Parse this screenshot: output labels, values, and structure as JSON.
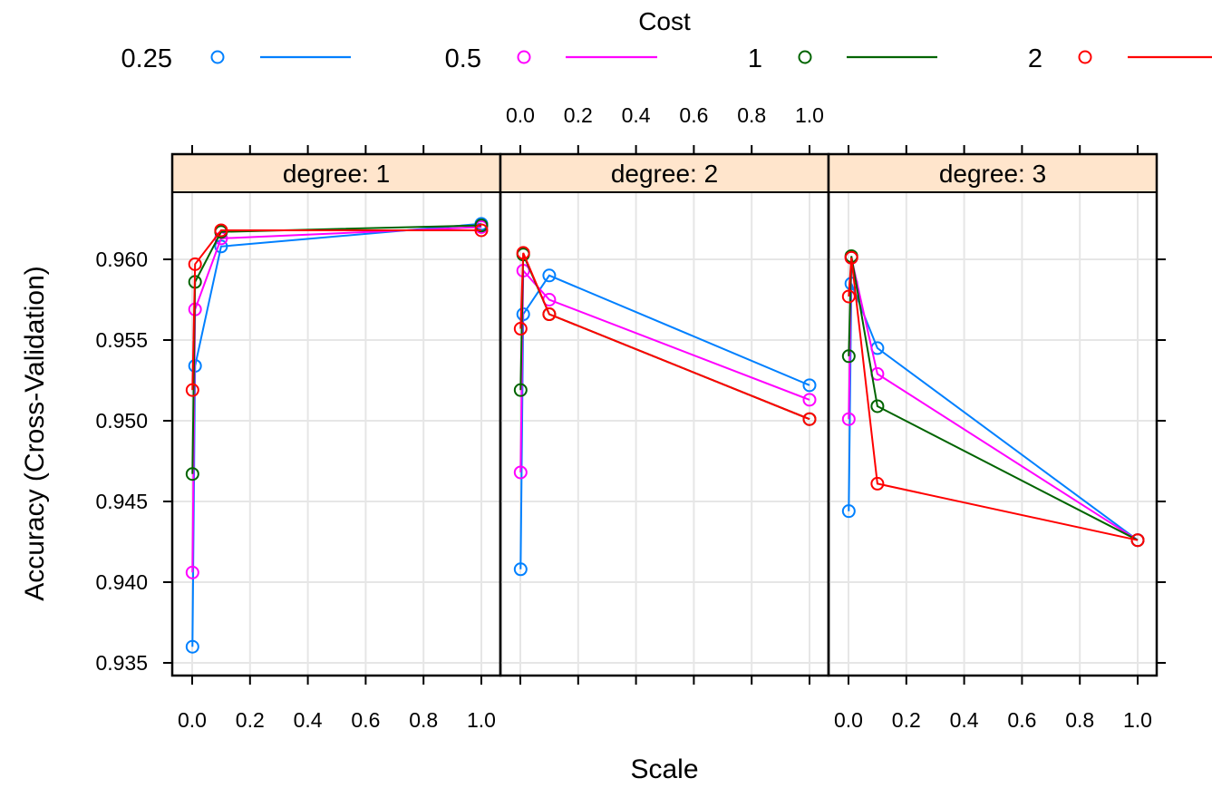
{
  "chart_data": {
    "type": "line",
    "xlabel": "Scale",
    "ylabel": "Accuracy (Cross-Validation)",
    "ylim": [
      0.9333,
      0.9641
    ],
    "xlim": [
      -0.08,
      1.05
    ],
    "x_ticks": [
      0.0,
      0.2,
      0.4,
      0.6,
      0.8,
      1.0
    ],
    "x_tick_labels": [
      "0.0",
      "0.2",
      "0.4",
      "0.6",
      "0.8",
      "1.0"
    ],
    "y_ticks": [
      0.935,
      0.94,
      0.945,
      0.95,
      0.955,
      0.96
    ],
    "y_tick_labels": [
      "0.935",
      "0.940",
      "0.945",
      "0.950",
      "0.955",
      "0.960"
    ],
    "grid": true,
    "legend": {
      "title": "Cost",
      "placement": "top",
      "entries": [
        {
          "label": "0.25",
          "color": "#0080ff"
        },
        {
          "label": "0.5",
          "color": "#ff00ff"
        },
        {
          "label": "1",
          "color": "#006400"
        },
        {
          "label": "2",
          "color": "#ff0000"
        }
      ]
    },
    "panels": [
      {
        "strip": "degree: 1",
        "series": [
          {
            "name": "0.25",
            "x": [
              0.001,
              0.01,
              0.1,
              1.0
            ],
            "y": [
              0.936,
              0.9534,
              0.9608,
              0.9622
            ]
          },
          {
            "name": "0.5",
            "x": [
              0.001,
              0.01,
              0.1,
              1.0
            ],
            "y": [
              0.9406,
              0.9569,
              0.9613,
              0.962
            ]
          },
          {
            "name": "1",
            "x": [
              0.001,
              0.01,
              0.1,
              1.0
            ],
            "y": [
              0.9467,
              0.9586,
              0.9617,
              0.9621
            ]
          },
          {
            "name": "2",
            "x": [
              0.001,
              0.01,
              0.1,
              1.0
            ],
            "y": [
              0.9519,
              0.9597,
              0.9618,
              0.9618
            ]
          }
        ]
      },
      {
        "strip": "degree: 2",
        "series": [
          {
            "name": "0.25",
            "x": [
              0.001,
              0.01,
              0.1,
              1.0
            ],
            "y": [
              0.9408,
              0.9566,
              0.959,
              0.9522
            ]
          },
          {
            "name": "0.5",
            "x": [
              0.001,
              0.01,
              0.1,
              1.0
            ],
            "y": [
              0.9468,
              0.9593,
              0.9575,
              0.9513
            ]
          },
          {
            "name": "1",
            "x": [
              0.001,
              0.01,
              0.1,
              1.0
            ],
            "y": [
              0.9519,
              0.9603,
              0.9566,
              0.9501
            ]
          },
          {
            "name": "2",
            "x": [
              0.001,
              0.01,
              0.1,
              1.0
            ],
            "y": [
              0.9557,
              0.9604,
              0.9566,
              0.9501
            ]
          }
        ]
      },
      {
        "strip": "degree: 3",
        "series": [
          {
            "name": "0.25",
            "x": [
              0.001,
              0.01,
              0.1,
              1.0
            ],
            "y": [
              0.9444,
              0.9585,
              0.9545,
              0.9426
            ]
          },
          {
            "name": "0.5",
            "x": [
              0.001,
              0.01,
              0.1,
              1.0
            ],
            "y": [
              0.9501,
              0.9601,
              0.9529,
              0.9426
            ]
          },
          {
            "name": "1",
            "x": [
              0.001,
              0.01,
              0.1,
              1.0
            ],
            "y": [
              0.954,
              0.9602,
              0.9509,
              0.9426
            ]
          },
          {
            "name": "2",
            "x": [
              0.001,
              0.01,
              0.1,
              1.0
            ],
            "y": [
              0.9577,
              0.9601,
              0.9461,
              0.9426
            ]
          }
        ]
      }
    ]
  }
}
